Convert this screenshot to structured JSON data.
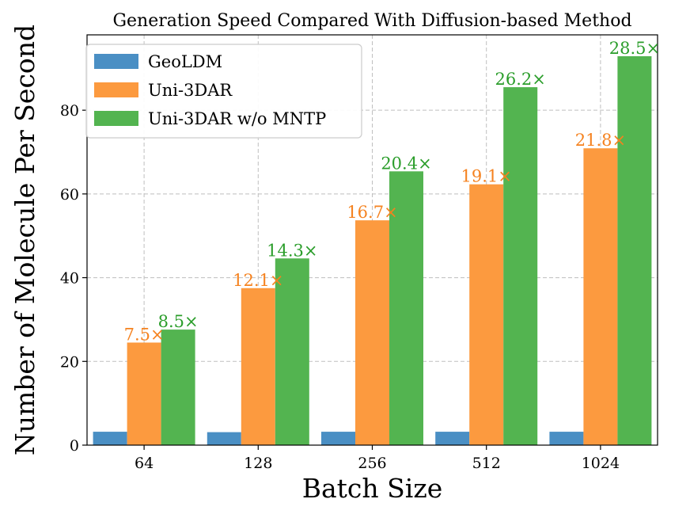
{
  "chart_data": {
    "type": "bar",
    "title": "Generation Speed Compared With Diffusion-based Method",
    "xlabel": "Batch Size",
    "ylabel": "Number of Molecule Per Second",
    "categories": [
      "64",
      "128",
      "256",
      "512",
      "1024"
    ],
    "ylim": [
      0,
      98
    ],
    "yticks": [
      0,
      20,
      40,
      60,
      80
    ],
    "grid": true,
    "legend_position": "top-left",
    "series": [
      {
        "name": "GeoLDM",
        "color": "#4a8fc4",
        "values": [
          3.2,
          3.1,
          3.2,
          3.2,
          3.2
        ],
        "labels": []
      },
      {
        "name": "Uni-3DAR",
        "color": "#fc9a3f",
        "values": [
          24.5,
          37.5,
          53.7,
          62.3,
          70.9
        ],
        "labels": [
          "7.5×",
          "12.1×",
          "16.7×",
          "19.1×",
          "21.8×"
        ],
        "label_color": "#f5821f"
      },
      {
        "name": "Uni-3DAR w/o MNTP",
        "color": "#53b450",
        "values": [
          27.6,
          44.6,
          65.4,
          85.5,
          92.9
        ],
        "labels": [
          "8.5×",
          "14.3×",
          "20.4×",
          "26.2×",
          "28.5×"
        ],
        "label_color": "#2a9d2a"
      }
    ]
  }
}
